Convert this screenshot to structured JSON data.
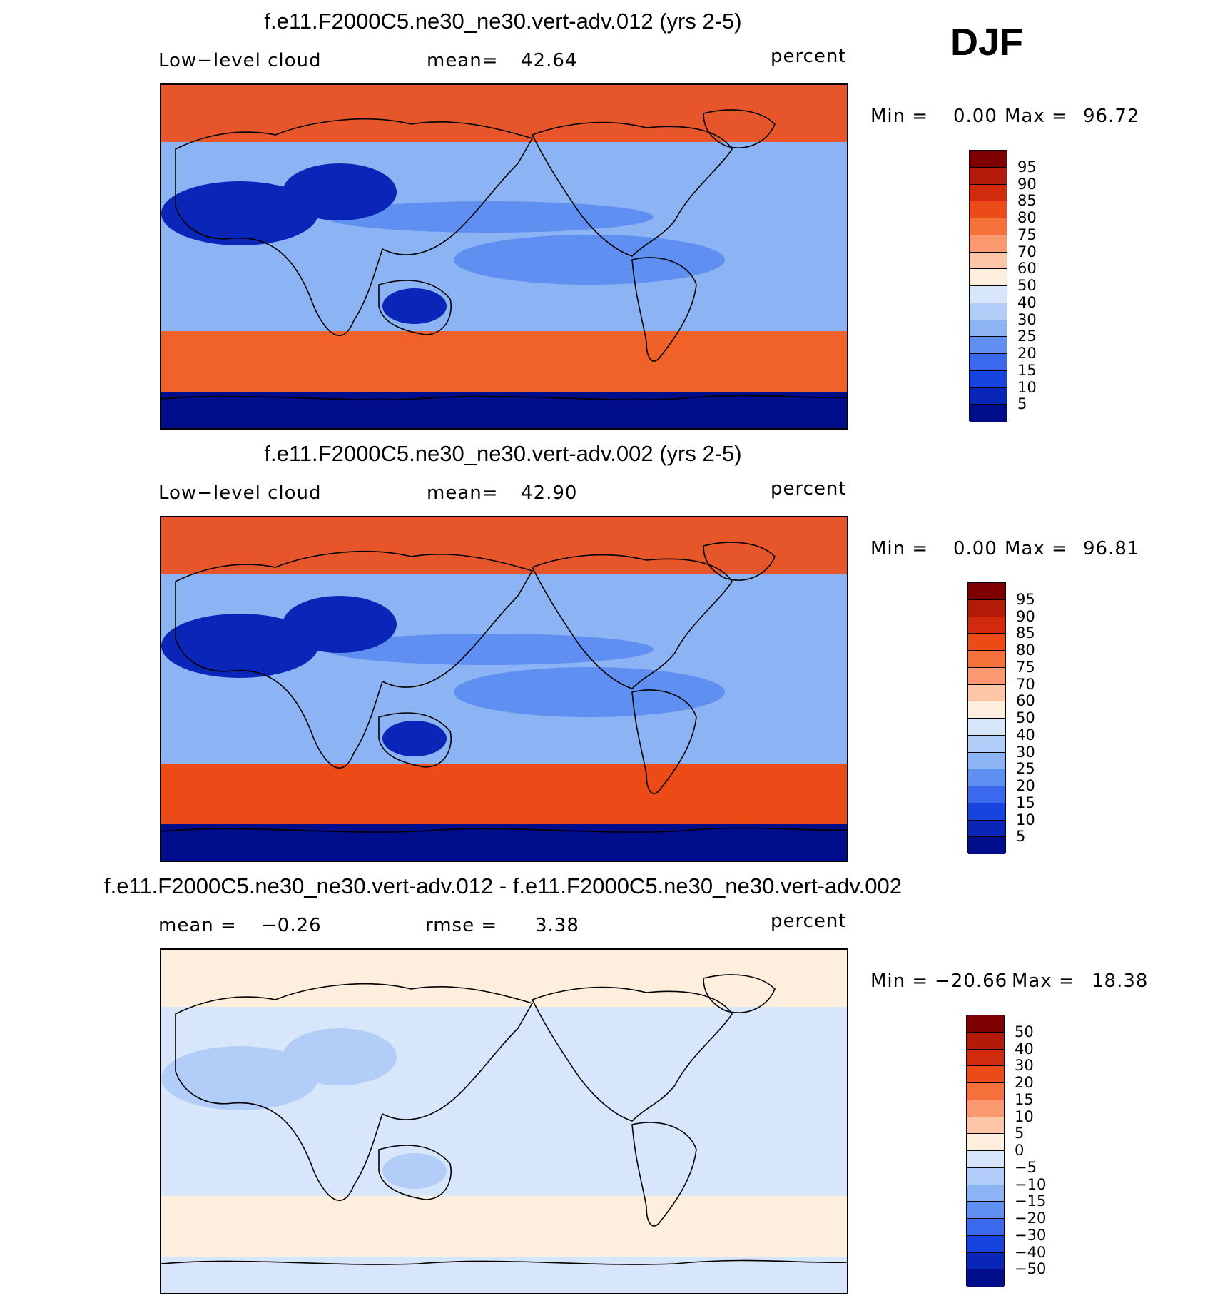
{
  "season": "DJF",
  "chart_data": [
    {
      "type": "heatmap",
      "title": "f.e11.F2000C5.ne30_ne30.vert-adv.012 (yrs 2-5)",
      "variable": "Low−level cloud",
      "mean_label": "mean=",
      "mean": "42.64",
      "units": "percent",
      "min_label": "Min =",
      "min": "0.00",
      "max_label": "Max =",
      "max": "96.72",
      "levels": [
        "95",
        "90",
        "85",
        "80",
        "75",
        "70",
        "60",
        "50",
        "40",
        "30",
        "25",
        "20",
        "15",
        "10",
        "5"
      ],
      "colors": [
        "#7f0000",
        "#b31a0a",
        "#d12a0c",
        "#ec4a16",
        "#f5703a",
        "#fa9870",
        "#fdc6a8",
        "#fdeede",
        "#d8e6fb",
        "#b2cdf7",
        "#8cb3f3",
        "#5f8ff0",
        "#3a69ee",
        "#1744e0",
        "#0a26b8",
        "#000d8a"
      ],
      "field": {
        "arctic": "#e7562a",
        "subpolar_south": "#f0622a",
        "antarctic": "#000d8a",
        "subtropics": "#8cb3f3",
        "tropics": "#5f8ff0",
        "deserts": "#0a26b8"
      }
    },
    {
      "type": "heatmap",
      "title": "f.e11.F2000C5.ne30_ne30.vert-adv.002 (yrs 2-5)",
      "variable": "Low−level cloud",
      "mean_label": "mean=",
      "mean": "42.90",
      "units": "percent",
      "min_label": "Min =",
      "min": "0.00",
      "max_label": "Max =",
      "max": "96.81",
      "levels": [
        "95",
        "90",
        "85",
        "80",
        "75",
        "70",
        "60",
        "50",
        "40",
        "30",
        "25",
        "20",
        "15",
        "10",
        "5"
      ],
      "colors": [
        "#7f0000",
        "#b31a0a",
        "#d12a0c",
        "#ec4a16",
        "#f5703a",
        "#fa9870",
        "#fdc6a8",
        "#fdeede",
        "#d8e6fb",
        "#b2cdf7",
        "#8cb3f3",
        "#5f8ff0",
        "#3a69ee",
        "#1744e0",
        "#0a26b8",
        "#000d8a"
      ],
      "field": {
        "arctic": "#e7562a",
        "subpolar_south": "#ec4a16",
        "antarctic": "#000d8a",
        "subtropics": "#8cb3f3",
        "tropics": "#5f8ff0",
        "deserts": "#0a26b8"
      }
    },
    {
      "type": "heatmap",
      "title": "f.e11.F2000C5.ne30_ne30.vert-adv.012 - f.e11.F2000C5.ne30_ne30.vert-adv.002",
      "mean_label": "mean =",
      "mean": "−0.26",
      "rmse_label": "rmse =",
      "rmse": "3.38",
      "units": "percent",
      "min_label": "Min =",
      "min": "−20.66",
      "max_label": "Max =",
      "max": "18.38",
      "levels": [
        "50",
        "40",
        "30",
        "20",
        "15",
        "10",
        "5",
        "0",
        "−5",
        "−10",
        "−15",
        "−20",
        "−30",
        "−40",
        "−50"
      ],
      "colors": [
        "#7f0000",
        "#b31a0a",
        "#d12a0c",
        "#ec4a16",
        "#f5703a",
        "#fa9870",
        "#fdc6a8",
        "#fdeede",
        "#d8e6fb",
        "#b2cdf7",
        "#8cb3f3",
        "#5f8ff0",
        "#3a69ee",
        "#1744e0",
        "#0a26b8",
        "#000d8a"
      ],
      "field": {
        "arctic": "#fdeede",
        "subpolar_south": "#fdeede",
        "antarctic": "#d8e6fb",
        "subtropics": "#d8e6fb",
        "tropics": "#d8e6fb",
        "deserts": "#b2cdf7"
      }
    }
  ]
}
